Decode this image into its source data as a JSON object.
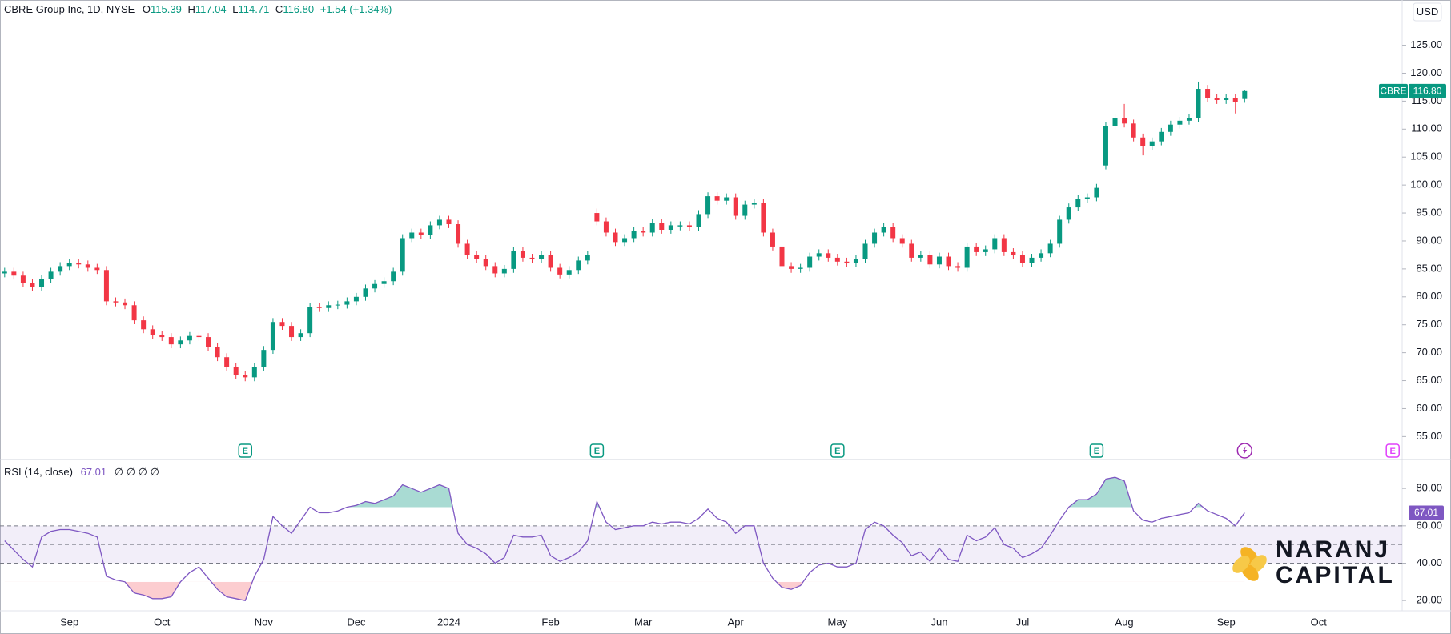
{
  "header": {
    "symbol": "CBRE Group Inc, 1D, NYSE",
    "ohlc": [
      {
        "key": "O",
        "value": "115.39"
      },
      {
        "key": "H",
        "value": "117.04"
      },
      {
        "key": "L",
        "value": "114.71"
      },
      {
        "key": "C",
        "value": "116.80"
      }
    ],
    "change": "+1.54 (+1.34%)",
    "currency": "USD"
  },
  "logo": {
    "line1": "NARANJ",
    "line2": "CAPITAL"
  },
  "chart_data": [
    {
      "type": "candlestick",
      "name": "CBRE",
      "up_color": "#089981",
      "down_color": "#f23645",
      "grid": false,
      "ylim": [
        50.9,
        133.1
      ],
      "yticks": [
        {
          "value": 125,
          "label": "125.00"
        },
        {
          "value": 120,
          "label": "120.00"
        },
        {
          "value": 115,
          "label": "115.00"
        },
        {
          "value": 110,
          "label": "110.00"
        },
        {
          "value": 105,
          "label": "105.00"
        },
        {
          "value": 100,
          "label": "100.00"
        },
        {
          "value": 95,
          "label": "95.00"
        },
        {
          "value": 90,
          "label": "90.00"
        },
        {
          "value": 85,
          "label": "85.00"
        },
        {
          "value": 80,
          "label": "80.00"
        },
        {
          "value": 75,
          "label": "75.00"
        },
        {
          "value": 70,
          "label": "70.00"
        },
        {
          "value": 65,
          "label": "65.00"
        },
        {
          "value": 60,
          "label": "60.00"
        },
        {
          "value": 55,
          "label": "55.00"
        }
      ],
      "categories": [
        null,
        null,
        null,
        null,
        null,
        null,
        null,
        "Sep",
        null,
        null,
        null,
        null,
        null,
        null,
        null,
        null,
        null,
        "Oct",
        null,
        null,
        null,
        null,
        null,
        null,
        null,
        null,
        null,
        null,
        "Nov",
        null,
        null,
        null,
        null,
        null,
        null,
        null,
        null,
        null,
        "Dec",
        null,
        null,
        null,
        null,
        null,
        null,
        null,
        null,
        null,
        "2024",
        null,
        null,
        null,
        null,
        null,
        null,
        null,
        null,
        null,
        null,
        "Feb",
        null,
        null,
        null,
        null,
        null,
        null,
        null,
        null,
        null,
        "Mar",
        null,
        null,
        null,
        null,
        null,
        null,
        null,
        null,
        null,
        "Apr",
        null,
        null,
        null,
        null,
        null,
        null,
        null,
        null,
        null,
        null,
        "May",
        null,
        null,
        null,
        null,
        null,
        null,
        null,
        null,
        null,
        null,
        "Jun",
        null,
        null,
        null,
        null,
        null,
        null,
        null,
        null,
        "Jul",
        null,
        null,
        null,
        null,
        null,
        null,
        null,
        null,
        null,
        null,
        "Aug",
        null,
        null,
        null,
        null,
        null,
        null,
        null,
        null,
        null,
        null,
        "Sep",
        null,
        null,
        null,
        null,
        null,
        null,
        null,
        null,
        null,
        "Oct",
        null,
        null,
        null,
        null,
        null,
        null,
        null,
        null
      ],
      "values": [
        [
          84.2,
          85.2,
          83.5,
          84.5
        ],
        [
          84.5,
          85.2,
          83.1,
          83.8
        ],
        [
          83.8,
          84.5,
          81.8,
          82.5
        ],
        [
          82.5,
          83.2,
          81.1,
          81.8
        ],
        [
          81.8,
          83.9,
          81.1,
          83.2
        ],
        [
          83.2,
          85.2,
          82.5,
          84.5
        ],
        [
          84.5,
          86.2,
          83.8,
          85.5
        ],
        [
          85.5,
          86.7,
          84.8,
          86.0
        ],
        [
          86.0,
          86.7,
          85.1,
          85.8
        ],
        [
          85.8,
          86.5,
          84.5,
          85.2
        ],
        [
          85.2,
          85.9,
          84.1,
          84.8
        ],
        [
          84.8,
          85.5,
          78.5,
          79.2
        ],
        [
          79.2,
          79.9,
          78.3,
          79.0
        ],
        [
          79.0,
          79.7,
          77.8,
          78.5
        ],
        [
          78.5,
          79.2,
          75.1,
          75.8
        ],
        [
          75.8,
          76.5,
          73.5,
          74.2
        ],
        [
          74.2,
          74.9,
          72.5,
          73.2
        ],
        [
          73.2,
          73.9,
          72.1,
          72.8
        ],
        [
          72.8,
          73.5,
          70.8,
          71.5
        ],
        [
          71.5,
          72.9,
          70.8,
          72.2
        ],
        [
          72.2,
          73.7,
          71.5,
          73.0
        ],
        [
          73.0,
          73.7,
          72.1,
          72.8
        ],
        [
          72.8,
          73.5,
          70.3,
          71.0
        ],
        [
          71.0,
          71.7,
          68.5,
          69.2
        ],
        [
          69.2,
          69.9,
          66.8,
          67.5
        ],
        [
          67.5,
          68.2,
          65.3,
          66.0
        ],
        [
          66.0,
          66.7,
          64.9,
          65.6
        ],
        [
          65.6,
          68.2,
          64.9,
          67.5
        ],
        [
          67.5,
          71.2,
          66.8,
          70.5
        ],
        [
          70.5,
          76.2,
          69.8,
          75.5
        ],
        [
          75.5,
          76.2,
          74.1,
          74.8
        ],
        [
          74.8,
          75.5,
          72.1,
          72.8
        ],
        [
          72.8,
          74.2,
          72.1,
          73.5
        ],
        [
          73.5,
          78.9,
          72.8,
          78.2
        ],
        [
          78.2,
          78.9,
          77.3,
          78.0
        ],
        [
          78.0,
          79.2,
          77.3,
          78.5
        ],
        [
          78.5,
          79.3,
          77.8,
          78.6
        ],
        [
          78.6,
          79.9,
          77.9,
          79.2
        ],
        [
          79.2,
          80.7,
          78.5,
          80.0
        ],
        [
          80.0,
          82.2,
          79.3,
          81.5
        ],
        [
          81.5,
          83.0,
          80.8,
          82.3
        ],
        [
          82.3,
          83.5,
          81.6,
          82.8
        ],
        [
          82.8,
          85.2,
          82.1,
          84.5
        ],
        [
          84.5,
          91.2,
          83.8,
          90.5
        ],
        [
          90.5,
          92.2,
          89.8,
          91.5
        ],
        [
          91.5,
          92.2,
          90.3,
          91.0
        ],
        [
          91.0,
          93.5,
          90.3,
          92.8
        ],
        [
          92.8,
          94.5,
          92.1,
          93.8
        ],
        [
          93.8,
          94.5,
          92.3,
          93.0
        ],
        [
          93.0,
          93.7,
          88.8,
          89.5
        ],
        [
          89.5,
          90.2,
          86.8,
          87.5
        ],
        [
          87.5,
          88.2,
          86.1,
          86.8
        ],
        [
          86.8,
          87.5,
          84.8,
          85.5
        ],
        [
          85.5,
          86.2,
          83.5,
          84.2
        ],
        [
          84.2,
          85.7,
          83.5,
          85.0
        ],
        [
          85.0,
          88.9,
          84.3,
          88.2
        ],
        [
          88.2,
          88.9,
          86.3,
          87.0
        ],
        [
          87.0,
          87.7,
          86.1,
          86.8
        ],
        [
          86.8,
          88.2,
          86.1,
          87.5
        ],
        [
          87.5,
          88.2,
          84.5,
          85.2
        ],
        [
          85.2,
          85.9,
          83.3,
          84.0
        ],
        [
          84.0,
          85.5,
          83.3,
          84.8
        ],
        [
          84.8,
          87.2,
          84.1,
          86.5
        ],
        [
          86.5,
          88.2,
          85.8,
          87.5
        ],
        [
          95.0,
          95.8,
          92.8,
          93.5
        ],
        [
          93.5,
          94.2,
          90.8,
          91.5
        ],
        [
          91.5,
          92.2,
          89.1,
          89.8
        ],
        [
          89.8,
          91.2,
          89.1,
          90.5
        ],
        [
          90.5,
          92.5,
          89.8,
          91.8
        ],
        [
          91.8,
          92.5,
          90.8,
          91.5
        ],
        [
          91.5,
          93.9,
          90.8,
          93.2
        ],
        [
          93.2,
          93.9,
          91.3,
          92.0
        ],
        [
          92.0,
          93.5,
          91.3,
          92.8
        ],
        [
          92.6,
          93.5,
          91.9,
          92.8
        ],
        [
          92.8,
          93.5,
          91.8,
          92.5
        ],
        [
          92.5,
          95.5,
          91.8,
          94.8
        ],
        [
          94.8,
          98.7,
          94.1,
          98.0
        ],
        [
          98.0,
          98.7,
          96.5,
          97.2
        ],
        [
          97.2,
          98.5,
          96.5,
          97.8
        ],
        [
          97.8,
          98.5,
          93.8,
          94.5
        ],
        [
          94.5,
          97.2,
          93.8,
          96.5
        ],
        [
          96.5,
          97.5,
          95.8,
          96.8
        ],
        [
          96.8,
          97.5,
          90.8,
          91.5
        ],
        [
          91.5,
          92.2,
          88.3,
          89.0
        ],
        [
          89.0,
          89.7,
          84.8,
          85.5
        ],
        [
          85.5,
          86.2,
          84.3,
          85.0
        ],
        [
          85.0,
          85.9,
          84.3,
          85.2
        ],
        [
          85.2,
          87.9,
          84.5,
          87.2
        ],
        [
          87.2,
          88.5,
          86.5,
          87.8
        ],
        [
          87.8,
          88.5,
          86.3,
          87.0
        ],
        [
          87.0,
          87.7,
          85.6,
          86.3
        ],
        [
          86.3,
          87.0,
          85.3,
          86.0
        ],
        [
          86.0,
          87.5,
          85.3,
          86.8
        ],
        [
          86.8,
          90.2,
          86.1,
          89.5
        ],
        [
          89.5,
          92.2,
          88.8,
          91.5
        ],
        [
          91.5,
          93.2,
          90.8,
          92.5
        ],
        [
          92.5,
          93.2,
          89.8,
          90.5
        ],
        [
          90.5,
          91.2,
          88.8,
          89.5
        ],
        [
          89.5,
          90.2,
          86.3,
          87.0
        ],
        [
          87.0,
          88.2,
          86.3,
          87.5
        ],
        [
          87.5,
          88.2,
          85.1,
          85.8
        ],
        [
          85.8,
          87.9,
          85.1,
          87.2
        ],
        [
          87.2,
          87.9,
          84.8,
          85.5
        ],
        [
          85.5,
          86.2,
          84.5,
          85.2
        ],
        [
          85.2,
          89.7,
          84.5,
          89.0
        ],
        [
          89.0,
          89.7,
          87.3,
          88.0
        ],
        [
          88.0,
          89.2,
          87.3,
          88.5
        ],
        [
          88.5,
          91.2,
          87.8,
          90.5
        ],
        [
          90.5,
          91.2,
          87.3,
          88.0
        ],
        [
          88.0,
          88.7,
          86.8,
          87.5
        ],
        [
          87.5,
          88.2,
          85.3,
          86.0
        ],
        [
          86.0,
          87.7,
          85.3,
          87.0
        ],
        [
          87.0,
          88.5,
          86.3,
          87.8
        ],
        [
          87.8,
          90.2,
          87.1,
          89.5
        ],
        [
          89.5,
          94.5,
          88.8,
          93.8
        ],
        [
          93.8,
          96.7,
          93.1,
          96.0
        ],
        [
          96.0,
          98.2,
          95.3,
          97.5
        ],
        [
          97.5,
          98.5,
          96.8,
          97.8
        ],
        [
          97.8,
          100.2,
          97.1,
          99.5
        ],
        [
          103.5,
          111.2,
          102.8,
          110.5
        ],
        [
          110.5,
          112.7,
          109.8,
          112.0
        ],
        [
          112.0,
          114.5,
          110.3,
          111.0
        ],
        [
          111.0,
          111.7,
          107.8,
          108.5
        ],
        [
          108.5,
          109.2,
          105.3,
          107.0
        ],
        [
          107.0,
          108.5,
          106.3,
          107.8
        ],
        [
          107.8,
          110.2,
          107.1,
          109.5
        ],
        [
          109.5,
          111.5,
          108.8,
          110.8
        ],
        [
          110.8,
          112.2,
          110.1,
          111.5
        ],
        [
          111.5,
          112.7,
          110.8,
          112.0
        ],
        [
          112.0,
          118.5,
          111.3,
          117.2
        ],
        [
          117.2,
          117.9,
          114.8,
          115.5
        ],
        [
          115.5,
          116.2,
          114.5,
          115.2
        ],
        [
          115.2,
          116.2,
          114.5,
          115.5
        ],
        [
          115.5,
          116.2,
          112.8,
          114.8
        ],
        [
          115.39,
          117.04,
          114.71,
          116.8
        ],
        null,
        null,
        null,
        null,
        null,
        null,
        null,
        null,
        null,
        null,
        null,
        null,
        null,
        null,
        null,
        null
      ],
      "last_price": {
        "value": 116.8,
        "label": "116.80"
      },
      "events": [
        {
          "label": "E",
          "index": 26,
          "color": "#089981"
        },
        {
          "label": "E",
          "index": 64,
          "color": "#089981"
        },
        {
          "label": "E",
          "index": 90,
          "color": "#089981"
        },
        {
          "label": "E",
          "index": 118,
          "color": "#089981"
        },
        {
          "label": "E",
          "index": 150,
          "color": "#e040fb"
        }
      ]
    },
    {
      "type": "line",
      "title": "RSI (14, close)",
      "extras": "∅ ∅ ∅ ∅",
      "color": "#7e57c2",
      "grid": false,
      "ylim": [
        14.5,
        95.5
      ],
      "yticks": [
        {
          "value": 80,
          "label": "80.00"
        },
        {
          "value": 60,
          "label": "60.00"
        },
        {
          "value": 40,
          "label": "40.00"
        },
        {
          "value": 20,
          "label": "20.00"
        }
      ],
      "band": [
        40,
        60
      ],
      "levels": [
        60,
        50,
        40
      ],
      "overbought": 70,
      "oversold": 30,
      "values": [
        52,
        47,
        42,
        38,
        54,
        57,
        58,
        58,
        57,
        56,
        54,
        33,
        31,
        30,
        24,
        23,
        21,
        21,
        22,
        30,
        35,
        38,
        32,
        26,
        22,
        21,
        20,
        33,
        42,
        65,
        60,
        56,
        63,
        70,
        67,
        67,
        68,
        70,
        71,
        73,
        72,
        74,
        76,
        82,
        80,
        78,
        80,
        82,
        80,
        56,
        50,
        48,
        45,
        40,
        43,
        55,
        54,
        54,
        55,
        44,
        41,
        43,
        46,
        52,
        73,
        62,
        58,
        59,
        60,
        60,
        62,
        61,
        62,
        62,
        61,
        64,
        69,
        64,
        62,
        56,
        60,
        60,
        40,
        32,
        27,
        26,
        28,
        35,
        39,
        40,
        38,
        38,
        40,
        58,
        62,
        60,
        55,
        51,
        44,
        46,
        41,
        48,
        42,
        41,
        55,
        52,
        54,
        59,
        50,
        48,
        43,
        45,
        48,
        55,
        63,
        70,
        74,
        74,
        77,
        85,
        86,
        84,
        68,
        63,
        62,
        64,
        65,
        66,
        67,
        72,
        68,
        66,
        64,
        60,
        67.01,
        null,
        null,
        null,
        null,
        null,
        null,
        null,
        null,
        null,
        null,
        null,
        null,
        null,
        null,
        null,
        null
      ],
      "last": {
        "value": 67.01,
        "label": "67.01"
      }
    }
  ]
}
